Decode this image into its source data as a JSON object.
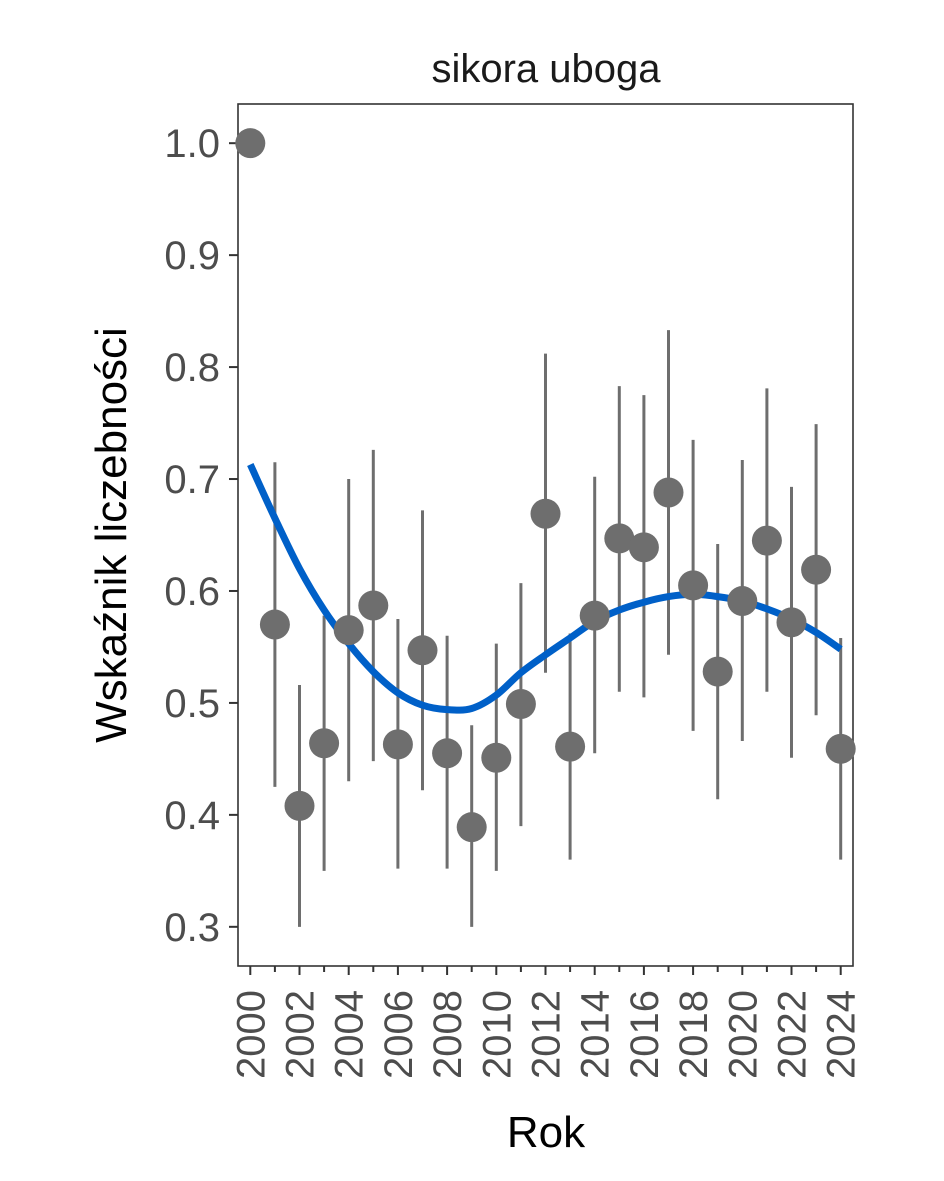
{
  "chart_data": {
    "type": "scatter",
    "title": "sikora uboga",
    "xlabel": "Rok",
    "ylabel": "Wskaźnik liczebności",
    "xlim": [
      1999.5,
      2024.5
    ],
    "ylim": [
      0.265,
      1.035
    ],
    "x_ticks": [
      "2000",
      "2002",
      "2004",
      "2006",
      "2008",
      "2010",
      "2012",
      "2014",
      "2016",
      "2018",
      "2020",
      "2022",
      "2024"
    ],
    "y_ticks": [
      "0.3",
      "0.4",
      "0.5",
      "0.6",
      "0.7",
      "0.8",
      "0.9",
      "1.0"
    ],
    "grid": false,
    "legend": "none",
    "colors": {
      "points": "#6e6e6e",
      "trend": "#0060c8",
      "axis": "#333333"
    },
    "series": [
      {
        "type": "points_with_errorbars",
        "points": [
          {
            "x": 2000,
            "y": 1.0,
            "lo": 1.0,
            "hi": 1.0
          },
          {
            "x": 2001,
            "y": 0.57,
            "lo": 0.425,
            "hi": 0.715
          },
          {
            "x": 2002,
            "y": 0.408,
            "lo": 0.3,
            "hi": 0.516
          },
          {
            "x": 2003,
            "y": 0.464,
            "lo": 0.35,
            "hi": 0.578
          },
          {
            "x": 2004,
            "y": 0.565,
            "lo": 0.43,
            "hi": 0.7
          },
          {
            "x": 2005,
            "y": 0.587,
            "lo": 0.448,
            "hi": 0.726
          },
          {
            "x": 2006,
            "y": 0.463,
            "lo": 0.352,
            "hi": 0.575
          },
          {
            "x": 2007,
            "y": 0.547,
            "lo": 0.422,
            "hi": 0.672
          },
          {
            "x": 2008,
            "y": 0.455,
            "lo": 0.352,
            "hi": 0.56
          },
          {
            "x": 2009,
            "y": 0.389,
            "lo": 0.3,
            "hi": 0.48
          },
          {
            "x": 2010,
            "y": 0.451,
            "lo": 0.35,
            "hi": 0.553
          },
          {
            "x": 2011,
            "y": 0.499,
            "lo": 0.39,
            "hi": 0.607
          },
          {
            "x": 2012,
            "y": 0.669,
            "lo": 0.527,
            "hi": 0.812
          },
          {
            "x": 2013,
            "y": 0.461,
            "lo": 0.36,
            "hi": 0.562
          },
          {
            "x": 2014,
            "y": 0.578,
            "lo": 0.455,
            "hi": 0.702
          },
          {
            "x": 2015,
            "y": 0.647,
            "lo": 0.51,
            "hi": 0.783
          },
          {
            "x": 2016,
            "y": 0.639,
            "lo": 0.505,
            "hi": 0.775
          },
          {
            "x": 2017,
            "y": 0.688,
            "lo": 0.543,
            "hi": 0.833
          },
          {
            "x": 2018,
            "y": 0.605,
            "lo": 0.475,
            "hi": 0.735
          },
          {
            "x": 2019,
            "y": 0.528,
            "lo": 0.414,
            "hi": 0.642
          },
          {
            "x": 2020,
            "y": 0.591,
            "lo": 0.466,
            "hi": 0.717
          },
          {
            "x": 2021,
            "y": 0.645,
            "lo": 0.51,
            "hi": 0.781
          },
          {
            "x": 2022,
            "y": 0.572,
            "lo": 0.451,
            "hi": 0.693
          },
          {
            "x": 2023,
            "y": 0.619,
            "lo": 0.489,
            "hi": 0.749
          },
          {
            "x": 2024,
            "y": 0.459,
            "lo": 0.36,
            "hi": 0.558
          }
        ]
      },
      {
        "type": "trend_line",
        "x": [
          2000,
          2001,
          2002,
          2003,
          2004,
          2005,
          2006,
          2007,
          2008,
          2009,
          2010,
          2011,
          2012,
          2013,
          2014,
          2015,
          2016,
          2017,
          2018,
          2019,
          2020,
          2021,
          2022,
          2023,
          2024
        ],
        "y": [
          0.713,
          0.665,
          0.62,
          0.583,
          0.553,
          0.528,
          0.509,
          0.498,
          0.494,
          0.495,
          0.507,
          0.527,
          0.543,
          0.558,
          0.573,
          0.583,
          0.59,
          0.595,
          0.597,
          0.595,
          0.591,
          0.584,
          0.575,
          0.563,
          0.548
        ]
      }
    ]
  }
}
